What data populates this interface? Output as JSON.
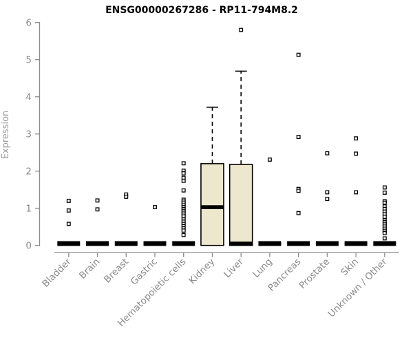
{
  "chart_data": {
    "type": "box",
    "title": "ENSG00000267286 - RP11-794M8.2",
    "ylabel": "Expression",
    "xlabel": "",
    "ylim": [
      0,
      6
    ],
    "yticks": [
      0,
      1,
      2,
      3,
      4,
      5,
      6
    ],
    "grid": false,
    "legend": false,
    "box_fill_color": "#EDE7CE",
    "axis_color": "#8B8B8B",
    "point_style": "open-square",
    "categories": [
      "Bladder",
      "Brain",
      "Breast",
      "Gastric",
      "Hematopoietic cells",
      "Kidney",
      "Liver",
      "Lung",
      "Pancreas",
      "Prostate",
      "Skin",
      "Unknown / Other"
    ],
    "series": [
      {
        "label": "Bladder",
        "q1": 0,
        "median": 0.05,
        "q3": 0,
        "whisker_low": 0,
        "whisker_high": 0,
        "outliers": [
          1.2,
          0.94,
          0.58
        ]
      },
      {
        "label": "Brain",
        "q1": 0,
        "median": 0.05,
        "q3": 0,
        "whisker_low": 0,
        "whisker_high": 0,
        "outliers": [
          1.21,
          0.97
        ]
      },
      {
        "label": "Breast",
        "q1": 0,
        "median": 0.05,
        "q3": 0,
        "whisker_low": 0,
        "whisker_high": 0,
        "outliers": [
          1.37,
          1.31
        ]
      },
      {
        "label": "Gastric",
        "q1": 0,
        "median": 0.05,
        "q3": 0,
        "whisker_low": 0,
        "whisker_high": 0,
        "outliers": [
          1.03
        ]
      },
      {
        "label": "Hematopoietic cells",
        "q1": 0,
        "median": 0.05,
        "q3": 0,
        "whisker_low": 0,
        "whisker_high": 0,
        "outliers": [
          2.21,
          2.01,
          1.94,
          1.82,
          1.74,
          1.48,
          1.23,
          1.18,
          1.13,
          1.08,
          1.03,
          0.98,
          0.93,
          0.88,
          0.83,
          0.78,
          0.7,
          0.64,
          0.58,
          0.52,
          0.46,
          0.4,
          0.28
        ]
      },
      {
        "label": "Kidney",
        "q1": 0,
        "median": 1.03,
        "q3": 2.2,
        "whisker_low": 0,
        "whisker_high": 3.72,
        "outliers": []
      },
      {
        "label": "Liver",
        "q1": 0,
        "median": 0.05,
        "q3": 2.18,
        "whisker_low": 0,
        "whisker_high": 4.69,
        "outliers": [
          5.8
        ]
      },
      {
        "label": "Lung",
        "q1": 0,
        "median": 0.05,
        "q3": 0,
        "whisker_low": 0,
        "whisker_high": 0,
        "outliers": [
          2.31
        ]
      },
      {
        "label": "Pancreas",
        "q1": 0,
        "median": 0.05,
        "q3": 0,
        "whisker_low": 0,
        "whisker_high": 0,
        "outliers": [
          5.13,
          2.92,
          1.52,
          1.47,
          0.87
        ]
      },
      {
        "label": "Prostate",
        "q1": 0,
        "median": 0.05,
        "q3": 0,
        "whisker_low": 0,
        "whisker_high": 0,
        "outliers": [
          2.48,
          1.43,
          1.25
        ]
      },
      {
        "label": "Skin",
        "q1": 0,
        "median": 0.05,
        "q3": 0,
        "whisker_low": 0,
        "whisker_high": 0,
        "outliers": [
          2.88,
          2.47,
          1.43
        ]
      },
      {
        "label": "Unknown / Other",
        "q1": 0,
        "median": 0.05,
        "q3": 0,
        "whisker_low": 0,
        "whisker_high": 0,
        "outliers": [
          1.56,
          1.42,
          1.19,
          1.15,
          1.05,
          0.98,
          0.91,
          0.84,
          0.77,
          0.68,
          0.63,
          0.58,
          0.53,
          0.48,
          0.43,
          0.38,
          0.33,
          0.19
        ]
      }
    ]
  }
}
